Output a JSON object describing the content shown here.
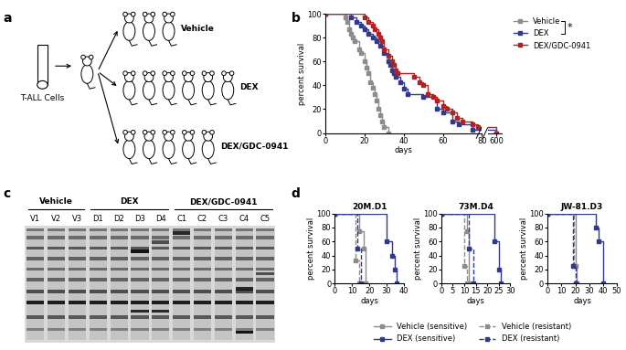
{
  "panel_labels": [
    "a",
    "b",
    "c",
    "d"
  ],
  "diagram": {
    "source": "T-ALL Cells",
    "groups": [
      {
        "label": "Vehicle",
        "mice": 3
      },
      {
        "label": "DEX",
        "mice": 6
      },
      {
        "label": "DEX/GDC-0941",
        "mice": 5
      }
    ]
  },
  "gel": {
    "groups": [
      {
        "name": "Vehicle",
        "lanes": [
          "V1",
          "V2",
          "V3"
        ]
      },
      {
        "name": "DEX",
        "lanes": [
          "D1",
          "D2",
          "D3",
          "D4"
        ]
      },
      {
        "name": "DEX/GDC-0941",
        "lanes": [
          "C1",
          "C2",
          "C3",
          "C4",
          "C5"
        ]
      }
    ]
  },
  "chart_data": [
    {
      "type": "step",
      "xlabel": "days",
      "ylabel": "percent survival",
      "xlim": [
        0,
        80
      ],
      "xticks": [
        0,
        20,
        40,
        60,
        80
      ],
      "x2lim": [
        585,
        610
      ],
      "x2ticks": [
        600
      ],
      "ylim": [
        0,
        100
      ],
      "yticks": [
        0,
        20,
        40,
        60,
        80,
        100
      ],
      "legend": "upper right",
      "annotation": "*",
      "series": [
        {
          "name": "Vehicle",
          "color": "#8c8c8c",
          "line_style": "solid",
          "marker": "square",
          "x": [
            0,
            10,
            11,
            12,
            13,
            14,
            15,
            17,
            18,
            20,
            21,
            22,
            23,
            24,
            25,
            26,
            27,
            28,
            29,
            30,
            32
          ],
          "values": [
            100,
            97,
            93,
            87,
            83,
            80,
            77,
            70,
            67,
            60,
            55,
            50,
            43,
            38,
            33,
            27,
            20,
            15,
            10,
            5,
            0
          ]
        },
        {
          "name": "DEX",
          "color": "#2e3a8c",
          "line_style": "solid",
          "marker": "square",
          "x": [
            0,
            13,
            16,
            18,
            20,
            22,
            24,
            26,
            28,
            30,
            32,
            33,
            34,
            35,
            36,
            38,
            40,
            42,
            50,
            57,
            60,
            65,
            68,
            75,
            600
          ],
          "values": [
            100,
            97,
            93,
            90,
            87,
            83,
            80,
            77,
            73,
            67,
            60,
            57,
            53,
            50,
            47,
            43,
            37,
            33,
            30,
            20,
            17,
            10,
            7,
            3,
            0
          ]
        },
        {
          "name": "DEX/GDC-0941",
          "color": "#b22222",
          "line_style": "solid",
          "marker": "square",
          "x": [
            0,
            20,
            22,
            24,
            25,
            27,
            28,
            29,
            30,
            32,
            34,
            35,
            36,
            37,
            45,
            48,
            50,
            52,
            55,
            57,
            60,
            62,
            65,
            67,
            70,
            75,
            78,
            600
          ],
          "values": [
            100,
            97,
            93,
            90,
            87,
            83,
            80,
            77,
            70,
            65,
            60,
            57,
            53,
            50,
            47,
            43,
            40,
            33,
            30,
            27,
            23,
            20,
            17,
            13,
            10,
            7,
            5,
            0
          ]
        }
      ]
    },
    {
      "type": "step",
      "title": "20M.D1",
      "xlabel": "days",
      "ylabel": "percent survival",
      "xlim": [
        0,
        40
      ],
      "xticks": [
        0,
        10,
        20,
        30,
        40
      ],
      "ylim": [
        0,
        100
      ],
      "yticks": [
        0,
        20,
        40,
        60,
        80,
        100
      ],
      "legend": "lower center",
      "series": [
        {
          "name": "Vehicle (sensitive)",
          "color": "#8c8c8c",
          "line_style": "solid",
          "marker": "square",
          "x": [
            0,
            14,
            17,
            18
          ],
          "values": [
            100,
            75,
            50,
            0
          ]
        },
        {
          "name": "DEX (sensitive)",
          "color": "#2e3a8c",
          "line_style": "solid",
          "marker": "square",
          "x": [
            0,
            30,
            33,
            35,
            36
          ],
          "values": [
            100,
            60,
            40,
            20,
            0
          ]
        },
        {
          "name": "Vehicle (resistant)",
          "color": "#8c8c8c",
          "line_style": "dashed",
          "marker": "square",
          "x": [
            0,
            12,
            14
          ],
          "values": [
            100,
            33,
            0
          ]
        },
        {
          "name": "DEX (resistant)",
          "color": "#2e3a8c",
          "line_style": "dashed",
          "marker": "square",
          "x": [
            0,
            13,
            15
          ],
          "values": [
            100,
            50,
            0
          ]
        }
      ]
    },
    {
      "type": "step",
      "title": "73M.D4",
      "xlabel": "days",
      "ylabel": "percent survival",
      "xlim": [
        0,
        30
      ],
      "xticks": [
        0,
        5,
        10,
        15,
        20,
        25,
        30
      ],
      "ylim": [
        0,
        100
      ],
      "yticks": [
        0,
        20,
        40,
        60,
        80,
        100
      ],
      "series": [
        {
          "name": "Vehicle (sensitive)",
          "color": "#8c8c8c",
          "line_style": "solid",
          "marker": "square",
          "x": [
            0,
            11,
            12
          ],
          "values": [
            100,
            75,
            0
          ]
        },
        {
          "name": "DEX (sensitive)",
          "color": "#2e3a8c",
          "line_style": "solid",
          "marker": "square",
          "x": [
            0,
            23,
            25,
            26
          ],
          "values": [
            100,
            60,
            20,
            0
          ]
        },
        {
          "name": "Vehicle (resistant)",
          "color": "#8c8c8c",
          "line_style": "dashed",
          "marker": "square",
          "x": [
            0,
            10,
            11
          ],
          "values": [
            100,
            25,
            0
          ]
        },
        {
          "name": "DEX (resistant)",
          "color": "#2e3a8c",
          "line_style": "dashed",
          "marker": "square",
          "x": [
            0,
            12,
            14
          ],
          "values": [
            100,
            50,
            0
          ]
        }
      ]
    },
    {
      "type": "step",
      "title": "JW-81.D3",
      "xlabel": "days",
      "ylabel": "percent survival",
      "xlim": [
        0,
        50
      ],
      "xticks": [
        0,
        10,
        20,
        30,
        40,
        50
      ],
      "ylim": [
        0,
        100
      ],
      "yticks": [
        0,
        20,
        40,
        60,
        80,
        100
      ],
      "series": [
        {
          "name": "Vehicle (sensitive)",
          "color": "#8c8c8c",
          "line_style": "solid",
          "marker": "square",
          "x": [
            0,
            20,
            21
          ],
          "values": [
            100,
            25,
            0
          ]
        },
        {
          "name": "DEX (sensitive)",
          "color": "#2e3a8c",
          "line_style": "solid",
          "marker": "square",
          "x": [
            0,
            35,
            37,
            40
          ],
          "values": [
            100,
            80,
            60,
            0
          ]
        },
        {
          "name": "Vehicle (resistant)",
          "color": "#8c8c8c",
          "line_style": "dashed",
          "marker": "square",
          "x": [
            0,
            19,
            20
          ],
          "values": [
            100,
            25,
            0
          ]
        },
        {
          "name": "DEX (resistant)",
          "color": "#2e3a8c",
          "line_style": "dashed",
          "marker": "square",
          "x": [
            0,
            18,
            20
          ],
          "values": [
            100,
            25,
            0
          ]
        }
      ]
    }
  ]
}
